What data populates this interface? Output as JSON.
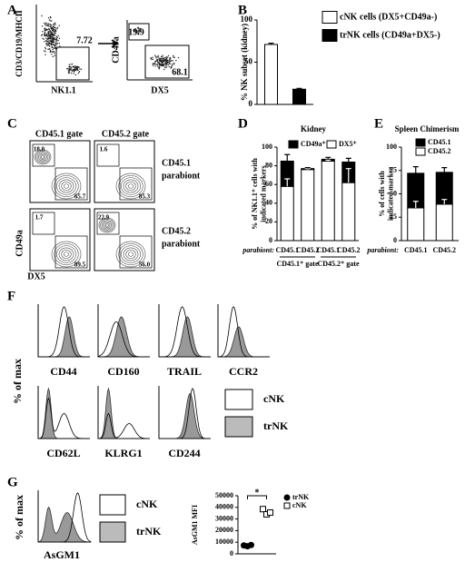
{
  "panel_labels": [
    "A",
    "B",
    "C",
    "D",
    "E",
    "F",
    "G"
  ],
  "panel_a": {
    "y_label": "CD3/CD19/MHCII",
    "x_label": "NK1.1",
    "gate": "7.72",
    "y_label_2": "CD49a",
    "x_label_2": "DX5",
    "gates_2": [
      "19.9",
      "68.1"
    ]
  },
  "panel_c": {
    "columns": [
      "CD45.1 gate",
      "CD45.2 gate"
    ],
    "rows": [
      [
        "CD45.1",
        "parabiont"
      ],
      [
        "CD45.2",
        "parabiont"
      ]
    ],
    "gates": [
      [
        "18.0",
        "65.7"
      ],
      [
        "1.6",
        "85.3"
      ],
      [
        "1.7",
        "89.5"
      ],
      [
        "22.9",
        "56.0"
      ]
    ],
    "y_label": "CD49a",
    "x_label": "DX5"
  },
  "panel_f": {
    "y_label": "% of max",
    "markers": [
      "CD44",
      "CD160",
      "TRAIL",
      "CCR2",
      "CD62L",
      "KLRG1",
      "CD244"
    ],
    "legend": [
      "cNK",
      "trNK"
    ]
  },
  "panel_g": {
    "y_label": "% of max",
    "marker": "AsGM1",
    "legend": [
      "cNK",
      "trNK"
    ]
  },
  "chart_data": [
    {
      "type": "bar",
      "y_label": [
        "% NK subset (kidney)"
      ],
      "categories": [
        null,
        null
      ],
      "stacked": false,
      "series": [
        {
          "name": "cNK cells (DX5+CD49a-)",
          "color": "#ffffff",
          "values": [
            71,
            null
          ],
          "errors": [
            1.5,
            null
          ]
        },
        {
          "name": "trNK cells (CD49a+DX5-)",
          "color": "#000000",
          "values": [
            null,
            18
          ],
          "errors": [
            null,
            1
          ]
        }
      ],
      "ylim": [
        0,
        100
      ],
      "yticks": [
        0,
        50,
        100
      ]
    },
    {
      "type": "bar",
      "title": "Kidney",
      "y_label": [
        "% of NK1.1⁺ cells with",
        "indicated markers"
      ],
      "x_label": "parabiont:",
      "categories": [
        "CD45.1",
        "CD45.2",
        "CD45.1",
        "CD45.2"
      ],
      "groups": [
        "CD45.1⁺ gate",
        "CD45.2⁺ gate"
      ],
      "stacked": true,
      "series": [
        {
          "name": "DX5⁺",
          "color": "#ffffff",
          "values": [
            58,
            76,
            85,
            62
          ],
          "errors": [
            8,
            1,
            1,
            15
          ]
        },
        {
          "name": "CD49a⁺",
          "color": "#000000",
          "values": [
            27,
            1,
            2,
            22
          ],
          "errors": [
            7,
            1,
            2,
            4
          ]
        }
      ],
      "ylim": [
        0,
        100
      ],
      "yticks": [
        0,
        20,
        40,
        60,
        80,
        100
      ]
    },
    {
      "type": "bar",
      "title": "Spleen Chimerism",
      "y_label": [
        "% of cells with",
        "indicated marker"
      ],
      "x_label": "parabiont:",
      "categories": [
        "CD45.1",
        "CD45.2"
      ],
      "stacked": true,
      "series": [
        {
          "name": "CD45.2",
          "color": "#ffffff",
          "values": [
            35,
            39
          ],
          "errors": [
            7,
            5
          ]
        },
        {
          "name": "CD45.1",
          "color": "#000000",
          "values": [
            37,
            34
          ],
          "errors": [
            7,
            5
          ]
        }
      ],
      "ylim": [
        0,
        100
      ],
      "yticks": [
        0,
        25,
        50,
        75,
        100
      ]
    },
    {
      "type": "scatter",
      "y_label": [
        "AsGM1 MFI"
      ],
      "annotation": "*",
      "series": [
        {
          "name": "trNK",
          "color": "#000000",
          "marker": "circle",
          "values": [
            7200,
            6500,
            7600
          ]
        },
        {
          "name": "cNK",
          "color": "#ffffff",
          "marker": "square",
          "values": [
            38500,
            34000,
            35500
          ]
        }
      ],
      "ylim": [
        0,
        50000
      ],
      "yticks": [
        0,
        10000,
        20000,
        30000,
        40000,
        50000
      ]
    }
  ]
}
